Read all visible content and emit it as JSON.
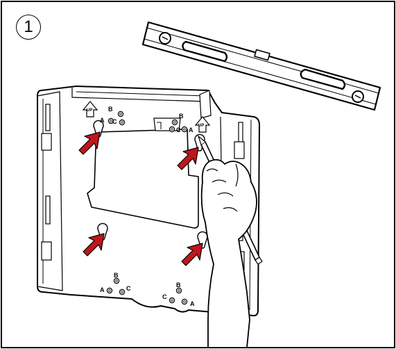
{
  "step": {
    "number": "1"
  },
  "hole_labels": {
    "a": "A",
    "b": "B",
    "c": "C"
  },
  "up_label": "UP",
  "colors": {
    "arrow": "#c0161b",
    "line": "#000000",
    "background": "#ffffff"
  },
  "icons": [
    "spirit-level-icon",
    "pencil-icon",
    "hand-icon",
    "mounting-plate-icon",
    "red-arrow-icon"
  ]
}
